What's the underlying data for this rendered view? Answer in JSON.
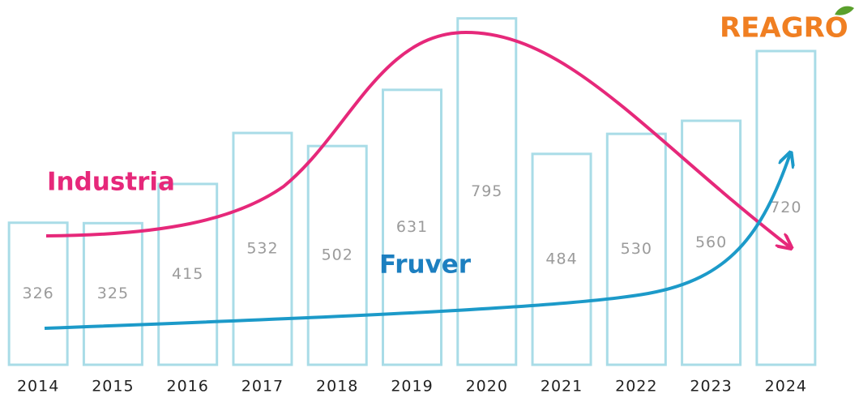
{
  "chart_data": {
    "type": "bar",
    "categories": [
      "2014",
      "2015",
      "2016",
      "2017",
      "2018",
      "2019",
      "2020",
      "2021",
      "2022",
      "2023",
      "2024"
    ],
    "values": [
      326,
      325,
      415,
      532,
      502,
      631,
      795,
      484,
      530,
      560,
      720
    ],
    "color": "#a9dce7",
    "ylim": [
      0,
      800
    ],
    "annotations": [
      "Industria",
      "Fruver"
    ],
    "logo": "REAGRO"
  }
}
